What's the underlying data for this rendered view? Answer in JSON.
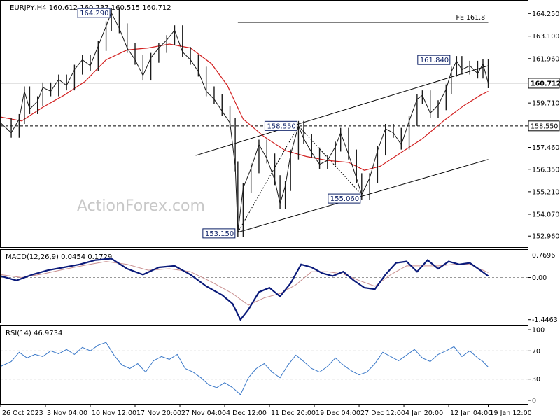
{
  "chart_data": [
    {
      "type": "line",
      "panel": "price",
      "header": "EURJPY,H4  160.612 160.737 160.515 160.712",
      "watermark": "ActionForex.com",
      "ylim": [
        152.4,
        164.9
      ],
      "y_ticks": [
        "164.250",
        "163.100",
        "161.960",
        "160.820",
        "159.710",
        "158.550",
        "157.460",
        "156.350",
        "155.210",
        "154.070",
        "152.960"
      ],
      "y_tick_values": [
        164.25,
        163.1,
        161.96,
        160.82,
        159.71,
        158.55,
        157.46,
        156.35,
        155.21,
        154.07,
        152.96
      ],
      "current_price": "160.712",
      "current_value": 160.712,
      "level_158": "158.550",
      "level_158_value": 158.55,
      "fe_label": "FE 161.8",
      "fe_value": 163.8,
      "fe_x": [
        0.45,
        0.925
      ],
      "annotations": [
        {
          "text": "164.290",
          "x": 0.21,
          "y": 164.29
        },
        {
          "text": "153.150",
          "x": 0.45,
          "y": 153.15
        },
        {
          "text": "158.550",
          "x": 0.565,
          "y": 158.55
        },
        {
          "text": "155.060",
          "x": 0.685,
          "y": 155.06
        },
        {
          "text": "161.840",
          "x": 0.855,
          "y": 161.84
        }
      ],
      "channel_upper": [
        {
          "x": 0.37,
          "y": 157.05
        },
        {
          "x": 0.925,
          "y": 161.6
        }
      ],
      "channel_lower": [
        {
          "x": 0.45,
          "y": 153.15
        },
        {
          "x": 0.925,
          "y": 156.85
        }
      ],
      "dotted_pattern": [
        {
          "x": 0.45,
          "y": 153.15
        },
        {
          "x": 0.565,
          "y": 158.55
        },
        {
          "x": 0.685,
          "y": 155.06
        }
      ],
      "price_series": [
        {
          "x": 0.0,
          "y": 158.7
        },
        {
          "x": 0.02,
          "y": 158.2
        },
        {
          "x": 0.035,
          "y": 158.9
        },
        {
          "x": 0.045,
          "y": 160.3
        },
        {
          "x": 0.055,
          "y": 159.4
        },
        {
          "x": 0.07,
          "y": 159.8
        },
        {
          "x": 0.08,
          "y": 160.5
        },
        {
          "x": 0.095,
          "y": 160.3
        },
        {
          "x": 0.11,
          "y": 160.9
        },
        {
          "x": 0.125,
          "y": 160.6
        },
        {
          "x": 0.14,
          "y": 161.4
        },
        {
          "x": 0.155,
          "y": 161.9
        },
        {
          "x": 0.17,
          "y": 161.6
        },
        {
          "x": 0.185,
          "y": 162.6
        },
        {
          "x": 0.2,
          "y": 163.6
        },
        {
          "x": 0.21,
          "y": 164.29
        },
        {
          "x": 0.225,
          "y": 163.5
        },
        {
          "x": 0.24,
          "y": 162.5
        },
        {
          "x": 0.255,
          "y": 161.9
        },
        {
          "x": 0.27,
          "y": 161.1
        },
        {
          "x": 0.285,
          "y": 162.0
        },
        {
          "x": 0.3,
          "y": 162.5
        },
        {
          "x": 0.315,
          "y": 162.9
        },
        {
          "x": 0.33,
          "y": 163.4
        },
        {
          "x": 0.345,
          "y": 162.3
        },
        {
          "x": 0.36,
          "y": 161.9
        },
        {
          "x": 0.375,
          "y": 161.3
        },
        {
          "x": 0.39,
          "y": 160.3
        },
        {
          "x": 0.405,
          "y": 159.9
        },
        {
          "x": 0.42,
          "y": 159.3
        },
        {
          "x": 0.435,
          "y": 158.7
        },
        {
          "x": 0.445,
          "y": 156.5
        },
        {
          "x": 0.45,
          "y": 153.15
        },
        {
          "x": 0.46,
          "y": 155.4
        },
        {
          "x": 0.475,
          "y": 156.4
        },
        {
          "x": 0.49,
          "y": 157.6
        },
        {
          "x": 0.505,
          "y": 156.9
        },
        {
          "x": 0.52,
          "y": 155.8
        },
        {
          "x": 0.53,
          "y": 154.6
        },
        {
          "x": 0.54,
          "y": 155.5
        },
        {
          "x": 0.55,
          "y": 157.1
        },
        {
          "x": 0.565,
          "y": 158.55
        },
        {
          "x": 0.575,
          "y": 157.9
        },
        {
          "x": 0.59,
          "y": 157.2
        },
        {
          "x": 0.605,
          "y": 156.6
        },
        {
          "x": 0.62,
          "y": 156.8
        },
        {
          "x": 0.635,
          "y": 157.5
        },
        {
          "x": 0.645,
          "y": 158.2
        },
        {
          "x": 0.66,
          "y": 157.1
        },
        {
          "x": 0.675,
          "y": 155.9
        },
        {
          "x": 0.685,
          "y": 155.06
        },
        {
          "x": 0.7,
          "y": 155.9
        },
        {
          "x": 0.715,
          "y": 157.3
        },
        {
          "x": 0.73,
          "y": 158.4
        },
        {
          "x": 0.745,
          "y": 158.2
        },
        {
          "x": 0.76,
          "y": 157.6
        },
        {
          "x": 0.775,
          "y": 158.8
        },
        {
          "x": 0.79,
          "y": 159.9
        },
        {
          "x": 0.8,
          "y": 160.1
        },
        {
          "x": 0.815,
          "y": 159.2
        },
        {
          "x": 0.83,
          "y": 159.6
        },
        {
          "x": 0.845,
          "y": 160.4
        },
        {
          "x": 0.855,
          "y": 161.3
        },
        {
          "x": 0.865,
          "y": 161.84
        },
        {
          "x": 0.875,
          "y": 161.4
        },
        {
          "x": 0.89,
          "y": 161.6
        },
        {
          "x": 0.905,
          "y": 161.2
        },
        {
          "x": 0.915,
          "y": 161.7
        },
        {
          "x": 0.925,
          "y": 160.712
        }
      ],
      "ema_series": [
        {
          "x": 0.0,
          "y": 159.0
        },
        {
          "x": 0.04,
          "y": 158.8
        },
        {
          "x": 0.08,
          "y": 159.5
        },
        {
          "x": 0.12,
          "y": 160.1
        },
        {
          "x": 0.16,
          "y": 160.8
        },
        {
          "x": 0.2,
          "y": 161.9
        },
        {
          "x": 0.24,
          "y": 162.4
        },
        {
          "x": 0.28,
          "y": 162.5
        },
        {
          "x": 0.32,
          "y": 162.7
        },
        {
          "x": 0.36,
          "y": 162.5
        },
        {
          "x": 0.4,
          "y": 161.7
        },
        {
          "x": 0.43,
          "y": 160.6
        },
        {
          "x": 0.46,
          "y": 158.9
        },
        {
          "x": 0.5,
          "y": 158.0
        },
        {
          "x": 0.54,
          "y": 157.3
        },
        {
          "x": 0.58,
          "y": 157.0
        },
        {
          "x": 0.62,
          "y": 156.8
        },
        {
          "x": 0.66,
          "y": 156.7
        },
        {
          "x": 0.69,
          "y": 156.3
        },
        {
          "x": 0.72,
          "y": 156.5
        },
        {
          "x": 0.76,
          "y": 157.2
        },
        {
          "x": 0.8,
          "y": 157.9
        },
        {
          "x": 0.84,
          "y": 158.8
        },
        {
          "x": 0.88,
          "y": 159.6
        },
        {
          "x": 0.91,
          "y": 160.1
        },
        {
          "x": 0.925,
          "y": 160.3
        }
      ]
    },
    {
      "type": "line",
      "panel": "macd",
      "header": "MACD(12,26,9) 0.0454 0.1729",
      "ylim": [
        -1.55,
        0.95
      ],
      "y_ticks": [
        "0.7696",
        "0.00",
        "-1.4463"
      ],
      "y_tick_values": [
        0.7696,
        0.0,
        -1.4463
      ],
      "macd_series": [
        {
          "x": 0.0,
          "y": 0.05
        },
        {
          "x": 0.03,
          "y": -0.1
        },
        {
          "x": 0.06,
          "y": 0.1
        },
        {
          "x": 0.09,
          "y": 0.25
        },
        {
          "x": 0.12,
          "y": 0.35
        },
        {
          "x": 0.15,
          "y": 0.45
        },
        {
          "x": 0.18,
          "y": 0.6
        },
        {
          "x": 0.21,
          "y": 0.65
        },
        {
          "x": 0.24,
          "y": 0.3
        },
        {
          "x": 0.27,
          "y": 0.1
        },
        {
          "x": 0.3,
          "y": 0.35
        },
        {
          "x": 0.33,
          "y": 0.4
        },
        {
          "x": 0.36,
          "y": 0.1
        },
        {
          "x": 0.39,
          "y": -0.3
        },
        {
          "x": 0.42,
          "y": -0.6
        },
        {
          "x": 0.44,
          "y": -0.9
        },
        {
          "x": 0.455,
          "y": -1.45
        },
        {
          "x": 0.47,
          "y": -1.1
        },
        {
          "x": 0.49,
          "y": -0.5
        },
        {
          "x": 0.51,
          "y": -0.35
        },
        {
          "x": 0.53,
          "y": -0.65
        },
        {
          "x": 0.55,
          "y": -0.2
        },
        {
          "x": 0.57,
          "y": 0.45
        },
        {
          "x": 0.59,
          "y": 0.35
        },
        {
          "x": 0.61,
          "y": 0.15
        },
        {
          "x": 0.63,
          "y": 0.05
        },
        {
          "x": 0.65,
          "y": 0.2
        },
        {
          "x": 0.67,
          "y": -0.1
        },
        {
          "x": 0.69,
          "y": -0.35
        },
        {
          "x": 0.71,
          "y": -0.4
        },
        {
          "x": 0.73,
          "y": 0.1
        },
        {
          "x": 0.75,
          "y": 0.5
        },
        {
          "x": 0.77,
          "y": 0.55
        },
        {
          "x": 0.79,
          "y": 0.2
        },
        {
          "x": 0.81,
          "y": 0.6
        },
        {
          "x": 0.83,
          "y": 0.3
        },
        {
          "x": 0.85,
          "y": 0.55
        },
        {
          "x": 0.87,
          "y": 0.45
        },
        {
          "x": 0.89,
          "y": 0.5
        },
        {
          "x": 0.91,
          "y": 0.25
        },
        {
          "x": 0.925,
          "y": 0.05
        }
      ],
      "signal_series": [
        {
          "x": 0.0,
          "y": 0.1
        },
        {
          "x": 0.04,
          "y": 0.0
        },
        {
          "x": 0.08,
          "y": 0.12
        },
        {
          "x": 0.12,
          "y": 0.28
        },
        {
          "x": 0.16,
          "y": 0.42
        },
        {
          "x": 0.2,
          "y": 0.55
        },
        {
          "x": 0.24,
          "y": 0.45
        },
        {
          "x": 0.28,
          "y": 0.25
        },
        {
          "x": 0.32,
          "y": 0.3
        },
        {
          "x": 0.36,
          "y": 0.2
        },
        {
          "x": 0.4,
          "y": -0.15
        },
        {
          "x": 0.44,
          "y": -0.55
        },
        {
          "x": 0.47,
          "y": -0.95
        },
        {
          "x": 0.5,
          "y": -0.7
        },
        {
          "x": 0.53,
          "y": -0.55
        },
        {
          "x": 0.56,
          "y": -0.25
        },
        {
          "x": 0.59,
          "y": 0.2
        },
        {
          "x": 0.62,
          "y": 0.2
        },
        {
          "x": 0.65,
          "y": 0.12
        },
        {
          "x": 0.68,
          "y": -0.1
        },
        {
          "x": 0.71,
          "y": -0.3
        },
        {
          "x": 0.74,
          "y": 0.1
        },
        {
          "x": 0.77,
          "y": 0.4
        },
        {
          "x": 0.8,
          "y": 0.4
        },
        {
          "x": 0.83,
          "y": 0.4
        },
        {
          "x": 0.86,
          "y": 0.45
        },
        {
          "x": 0.89,
          "y": 0.45
        },
        {
          "x": 0.925,
          "y": 0.17
        }
      ]
    },
    {
      "type": "line",
      "panel": "rsi",
      "header": "RSI(14) 46.9734",
      "ylim": [
        -5,
        105
      ],
      "y_ticks": [
        "100",
        "70",
        "30",
        "0"
      ],
      "y_tick_values": [
        100,
        70,
        30,
        0
      ],
      "rsi_series": [
        {
          "x": 0.0,
          "y": 48
        },
        {
          "x": 0.02,
          "y": 55
        },
        {
          "x": 0.035,
          "y": 68
        },
        {
          "x": 0.05,
          "y": 60
        },
        {
          "x": 0.065,
          "y": 65
        },
        {
          "x": 0.08,
          "y": 62
        },
        {
          "x": 0.095,
          "y": 70
        },
        {
          "x": 0.11,
          "y": 66
        },
        {
          "x": 0.125,
          "y": 72
        },
        {
          "x": 0.14,
          "y": 65
        },
        {
          "x": 0.155,
          "y": 75
        },
        {
          "x": 0.17,
          "y": 70
        },
        {
          "x": 0.185,
          "y": 78
        },
        {
          "x": 0.2,
          "y": 82
        },
        {
          "x": 0.215,
          "y": 64
        },
        {
          "x": 0.23,
          "y": 50
        },
        {
          "x": 0.245,
          "y": 45
        },
        {
          "x": 0.26,
          "y": 52
        },
        {
          "x": 0.275,
          "y": 40
        },
        {
          "x": 0.29,
          "y": 56
        },
        {
          "x": 0.305,
          "y": 62
        },
        {
          "x": 0.32,
          "y": 58
        },
        {
          "x": 0.335,
          "y": 65
        },
        {
          "x": 0.35,
          "y": 45
        },
        {
          "x": 0.365,
          "y": 40
        },
        {
          "x": 0.38,
          "y": 32
        },
        {
          "x": 0.395,
          "y": 22
        },
        {
          "x": 0.41,
          "y": 18
        },
        {
          "x": 0.425,
          "y": 25
        },
        {
          "x": 0.44,
          "y": 18
        },
        {
          "x": 0.455,
          "y": 8
        },
        {
          "x": 0.47,
          "y": 32
        },
        {
          "x": 0.485,
          "y": 45
        },
        {
          "x": 0.5,
          "y": 52
        },
        {
          "x": 0.515,
          "y": 40
        },
        {
          "x": 0.53,
          "y": 32
        },
        {
          "x": 0.545,
          "y": 50
        },
        {
          "x": 0.56,
          "y": 64
        },
        {
          "x": 0.575,
          "y": 55
        },
        {
          "x": 0.59,
          "y": 45
        },
        {
          "x": 0.605,
          "y": 40
        },
        {
          "x": 0.62,
          "y": 48
        },
        {
          "x": 0.635,
          "y": 60
        },
        {
          "x": 0.65,
          "y": 50
        },
        {
          "x": 0.665,
          "y": 42
        },
        {
          "x": 0.68,
          "y": 36
        },
        {
          "x": 0.695,
          "y": 40
        },
        {
          "x": 0.71,
          "y": 52
        },
        {
          "x": 0.725,
          "y": 68
        },
        {
          "x": 0.74,
          "y": 62
        },
        {
          "x": 0.755,
          "y": 56
        },
        {
          "x": 0.77,
          "y": 64
        },
        {
          "x": 0.785,
          "y": 72
        },
        {
          "x": 0.8,
          "y": 60
        },
        {
          "x": 0.815,
          "y": 55
        },
        {
          "x": 0.83,
          "y": 65
        },
        {
          "x": 0.845,
          "y": 70
        },
        {
          "x": 0.86,
          "y": 76
        },
        {
          "x": 0.875,
          "y": 62
        },
        {
          "x": 0.89,
          "y": 70
        },
        {
          "x": 0.905,
          "y": 60
        },
        {
          "x": 0.915,
          "y": 55
        },
        {
          "x": 0.925,
          "y": 47
        }
      ]
    }
  ],
  "x_axis": {
    "labels": [
      "26 Oct 2023",
      "3 Nov 04:00",
      "10 Nov 12:00",
      "17 Nov 20:00",
      "27 Nov 04:00",
      "4 Dec 12:00",
      "11 Dec 20:00",
      "19 Dec 04:00",
      "27 Dec 12:00",
      "4 Jan 20:00",
      "12 Jan 04:00",
      "19 Jan 12:00"
    ],
    "positions": [
      0.0,
      0.085,
      0.17,
      0.255,
      0.34,
      0.425,
      0.51,
      0.595,
      0.68,
      0.765,
      0.85,
      0.925
    ]
  }
}
